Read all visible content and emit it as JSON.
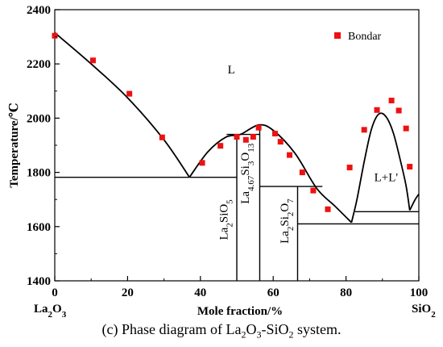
{
  "caption": {
    "label": "(c)",
    "prefix": "Phase diagram of",
    "system": [
      {
        "t": "La",
        "sub": false
      },
      {
        "t": "2",
        "sub": true
      },
      {
        "t": "O",
        "sub": false
      },
      {
        "t": "3",
        "sub": true
      },
      {
        "t": "-Si",
        "sub": false
      },
      {
        "t": "O",
        "sub": false
      },
      {
        "t": "2",
        "sub": true
      },
      {
        "t": " system.",
        "sub": false
      }
    ]
  },
  "chart_data": {
    "type": "scatter",
    "xlabel": "Mole fraction/%",
    "ylabel": "Temperature/℃",
    "xlim": [
      0,
      100
    ],
    "ylim": [
      1400,
      2400
    ],
    "xticks": [
      0,
      20,
      40,
      60,
      80,
      100
    ],
    "yticks": [
      1400,
      1600,
      1800,
      2000,
      2200,
      2400
    ],
    "x_end_labels": {
      "left": [
        {
          "t": "La",
          "sub": false
        },
        {
          "t": "2",
          "sub": true
        },
        {
          "t": "O",
          "sub": false
        },
        {
          "t": "3",
          "sub": true
        }
      ],
      "right": [
        {
          "t": "SiO",
          "sub": false
        },
        {
          "t": "2",
          "sub": true
        }
      ]
    },
    "grid": false,
    "legend": {
      "position": "top-right",
      "entries": [
        {
          "name": "Bondar",
          "color": "#ee1111",
          "marker": "square"
        }
      ]
    },
    "series": [
      {
        "name": "Bondar",
        "color": "#ee1111",
        "points": [
          [
            0,
            2304
          ],
          [
            10.5,
            2213
          ],
          [
            20.5,
            2090
          ],
          [
            29.5,
            1929
          ],
          [
            40.5,
            1835
          ],
          [
            45.5,
            1898
          ],
          [
            50,
            1931
          ],
          [
            52.5,
            1920
          ],
          [
            54.5,
            1931
          ],
          [
            56,
            1965
          ],
          [
            60.5,
            1943
          ],
          [
            62,
            1913
          ],
          [
            64.5,
            1864
          ],
          [
            68,
            1800
          ],
          [
            71,
            1733
          ],
          [
            75,
            1664
          ],
          [
            81,
            1818
          ],
          [
            85,
            1957
          ],
          [
            88.5,
            2030
          ],
          [
            92.5,
            2065
          ],
          [
            94.5,
            2028
          ],
          [
            96.5,
            1962
          ],
          [
            97.5,
            1821
          ]
        ]
      }
    ],
    "phase_lines": {
      "color": "#000000",
      "liquidus": [
        [
          [
            0,
            2315
          ],
          [
            10,
            2200
          ],
          [
            20,
            2075
          ],
          [
            30,
            1920
          ],
          [
            37,
            1782
          ]
        ],
        [
          [
            37,
            1782
          ],
          [
            42,
            1875
          ],
          [
            47,
            1930
          ],
          [
            51,
            1940
          ],
          [
            56,
            1975
          ],
          [
            60,
            1955
          ],
          [
            66,
            1870
          ],
          [
            72,
            1740
          ],
          [
            77,
            1675
          ],
          [
            81.5,
            1615
          ]
        ],
        [
          [
            81.5,
            1615
          ],
          [
            83,
            1700
          ],
          [
            85,
            1840
          ],
          [
            87,
            1960
          ],
          [
            89,
            2015
          ],
          [
            91,
            2005
          ],
          [
            93,
            1945
          ],
          [
            95,
            1840
          ],
          [
            96.5,
            1750
          ],
          [
            97.5,
            1660
          ]
        ],
        [
          [
            97.5,
            1660
          ],
          [
            99,
            1700
          ],
          [
            100,
            1720
          ]
        ]
      ],
      "structure": [
        [
          [
            0,
            1782
          ],
          [
            50,
            1782
          ]
        ],
        [
          [
            47.2,
            1940
          ],
          [
            56.3,
            1940
          ]
        ],
        [
          [
            50,
            1940
          ],
          [
            50,
            1400
          ]
        ],
        [
          [
            56.3,
            1975
          ],
          [
            56.3,
            1400
          ]
        ],
        [
          [
            56.3,
            1748
          ],
          [
            73.5,
            1748
          ]
        ],
        [
          [
            66.7,
            1748
          ],
          [
            66.7,
            1400
          ]
        ],
        [
          [
            66.7,
            1610
          ],
          [
            100,
            1610
          ]
        ],
        [
          [
            82.5,
            1655
          ],
          [
            100,
            1655
          ]
        ]
      ]
    },
    "annotations": [
      {
        "x": 47.5,
        "y": 1625,
        "rotate": -90,
        "parts": [
          {
            "t": "La",
            "sub": false
          },
          {
            "t": "2",
            "sub": true
          },
          {
            "t": "SiO",
            "sub": false
          },
          {
            "t": "5",
            "sub": true
          }
        ]
      },
      {
        "x": 53.3,
        "y": 1795,
        "rotate": -90,
        "parts": [
          {
            "t": "La",
            "sub": false
          },
          {
            "t": "4.67",
            "sub": true
          },
          {
            "t": "Si",
            "sub": false
          },
          {
            "t": "3",
            "sub": true
          },
          {
            "t": "O",
            "sub": false
          },
          {
            "t": "13",
            "sub": true
          }
        ]
      },
      {
        "x": 64.2,
        "y": 1620,
        "rotate": -90,
        "parts": [
          {
            "t": "La",
            "sub": false
          },
          {
            "t": "2",
            "sub": true
          },
          {
            "t": "Si",
            "sub": false
          },
          {
            "t": "2",
            "sub": true
          },
          {
            "t": "O",
            "sub": false
          },
          {
            "t": "7",
            "sub": true
          }
        ]
      },
      {
        "x": 48.5,
        "y": 2165,
        "rotate": 0,
        "parts": [
          {
            "t": "L",
            "sub": false
          }
        ]
      },
      {
        "x": 91,
        "y": 1768,
        "rotate": 0,
        "parts": [
          {
            "t": "L+L'",
            "sub": false
          }
        ]
      }
    ]
  }
}
